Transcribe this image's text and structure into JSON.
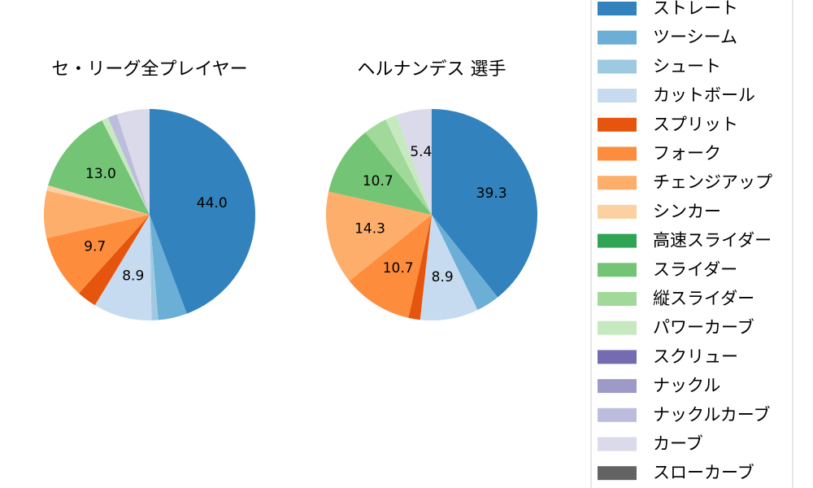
{
  "chart_data": [
    {
      "type": "pie",
      "title": "セ・リーグ全プレイヤー",
      "slices": [
        {
          "name": "ストレート",
          "value": 44.0,
          "label": "44.0"
        },
        {
          "name": "ツーシーム",
          "value": 4.4,
          "label": ""
        },
        {
          "name": "シュート",
          "value": 1.0,
          "label": ""
        },
        {
          "name": "カットボール",
          "value": 8.9,
          "label": "8.9"
        },
        {
          "name": "スプリット",
          "value": 3.0,
          "label": ""
        },
        {
          "name": "フォーク",
          "value": 9.7,
          "label": "9.7"
        },
        {
          "name": "チェンジアップ",
          "value": 7.2,
          "label": ""
        },
        {
          "name": "シンカー",
          "value": 0.8,
          "label": ""
        },
        {
          "name": "高速スライダー",
          "value": 0.0,
          "label": ""
        },
        {
          "name": "スライダー",
          "value": 13.0,
          "label": "13.0"
        },
        {
          "name": "縦スライダー",
          "value": 0.0,
          "label": ""
        },
        {
          "name": "パワーカーブ",
          "value": 1.0,
          "label": ""
        },
        {
          "name": "スクリュー",
          "value": 0.0,
          "label": ""
        },
        {
          "name": "ナックル",
          "value": 0.0,
          "label": ""
        },
        {
          "name": "ナックルカーブ",
          "value": 1.4,
          "label": ""
        },
        {
          "name": "カーブ",
          "value": 5.0,
          "label": ""
        },
        {
          "name": "スローカーブ",
          "value": 0.0,
          "label": ""
        }
      ]
    },
    {
      "type": "pie",
      "title": "ヘルナンデス 選手",
      "slices": [
        {
          "name": "ストレート",
          "value": 39.3,
          "label": "39.3"
        },
        {
          "name": "ツーシーム",
          "value": 3.6,
          "label": ""
        },
        {
          "name": "シュート",
          "value": 0.0,
          "label": ""
        },
        {
          "name": "カットボール",
          "value": 8.9,
          "label": "8.9"
        },
        {
          "name": "スプリット",
          "value": 1.8,
          "label": ""
        },
        {
          "name": "フォーク",
          "value": 10.7,
          "label": "10.7"
        },
        {
          "name": "チェンジアップ",
          "value": 14.3,
          "label": "14.3"
        },
        {
          "name": "シンカー",
          "value": 0.0,
          "label": ""
        },
        {
          "name": "高速スライダー",
          "value": 0.0,
          "label": ""
        },
        {
          "name": "スライダー",
          "value": 10.7,
          "label": "10.7"
        },
        {
          "name": "縦スライダー",
          "value": 3.6,
          "label": ""
        },
        {
          "name": "パワーカーブ",
          "value": 1.8,
          "label": ""
        },
        {
          "name": "スクリュー",
          "value": 0.0,
          "label": ""
        },
        {
          "name": "ナックル",
          "value": 0.0,
          "label": ""
        },
        {
          "name": "ナックルカーブ",
          "value": 0.0,
          "label": ""
        },
        {
          "name": "カーブ",
          "value": 5.4,
          "label": "5.4"
        },
        {
          "name": "スローカーブ",
          "value": 0.0,
          "label": ""
        }
      ]
    }
  ],
  "legend": {
    "placement": "right",
    "entries": [
      {
        "name": "ストレート",
        "color": "#3182bd"
      },
      {
        "name": "ツーシーム",
        "color": "#6baed6"
      },
      {
        "name": "シュート",
        "color": "#9ecae1"
      },
      {
        "name": "カットボール",
        "color": "#c6dbef"
      },
      {
        "name": "スプリット",
        "color": "#e6550d"
      },
      {
        "name": "フォーク",
        "color": "#fd8d3c"
      },
      {
        "name": "チェンジアップ",
        "color": "#fdae6b"
      },
      {
        "name": "シンカー",
        "color": "#fdd0a2"
      },
      {
        "name": "高速スライダー",
        "color": "#31a354"
      },
      {
        "name": "スライダー",
        "color": "#74c476"
      },
      {
        "name": "縦スライダー",
        "color": "#a1d99b"
      },
      {
        "name": "パワーカーブ",
        "color": "#c7e9c0"
      },
      {
        "name": "スクリュー",
        "color": "#756bb1"
      },
      {
        "name": "ナックル",
        "color": "#9e9ac8"
      },
      {
        "name": "ナックルカーブ",
        "color": "#bcbddc"
      },
      {
        "name": "カーブ",
        "color": "#dadaeb"
      },
      {
        "name": "スローカーブ",
        "color": "#636363"
      }
    ]
  }
}
